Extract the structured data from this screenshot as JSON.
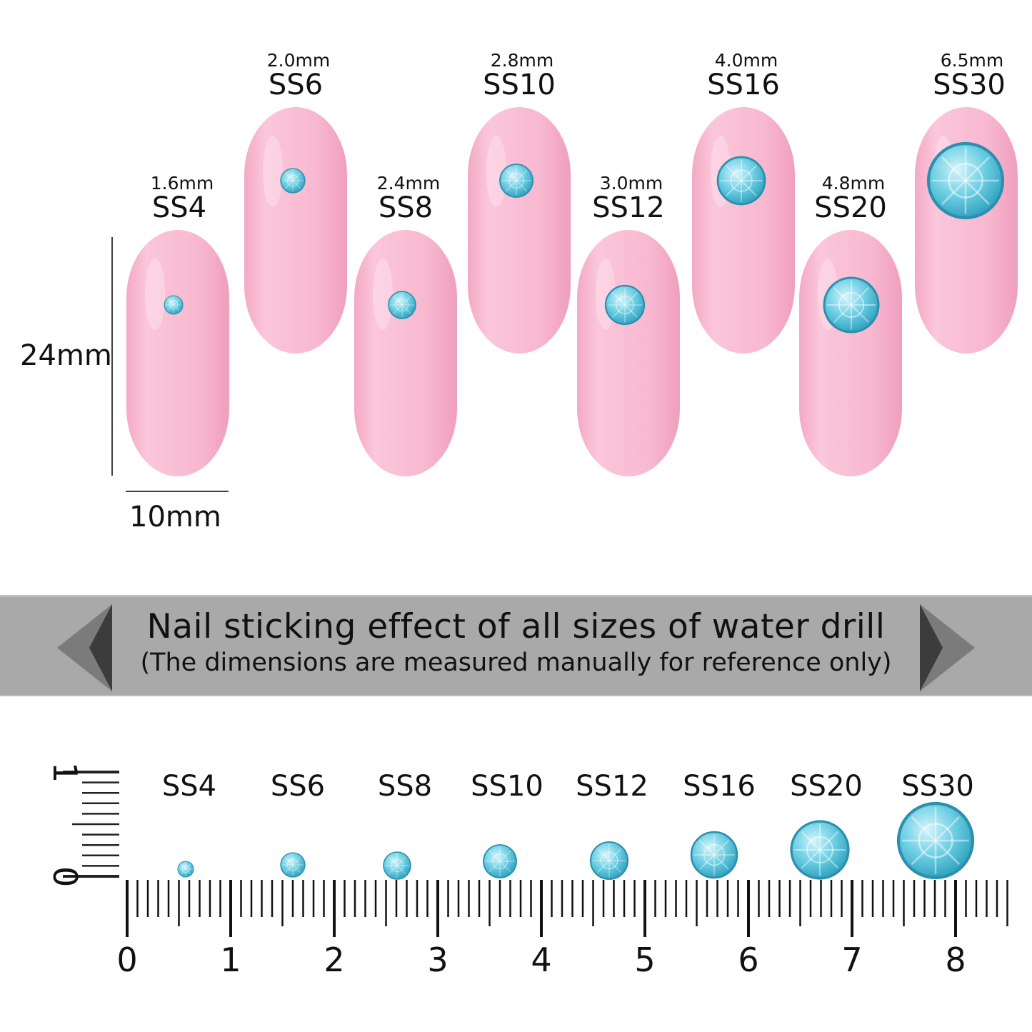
{
  "nails": [
    {
      "size": "SS4",
      "mm": "1.6mm"
    },
    {
      "size": "SS6",
      "mm": "2.0mm"
    },
    {
      "size": "SS8",
      "mm": "2.4mm"
    },
    {
      "size": "SS10",
      "mm": "2.8mm"
    },
    {
      "size": "SS12",
      "mm": "3.0mm"
    },
    {
      "size": "SS16",
      "mm": "4.0mm"
    },
    {
      "size": "SS20",
      "mm": "4.8mm"
    },
    {
      "size": "SS30",
      "mm": "6.5mm"
    }
  ],
  "dimensions": {
    "height": "24mm",
    "width": "10mm"
  },
  "banner": {
    "title": "Nail sticking effect of all sizes of water drill",
    "subtitle": "(The dimensions are measured manually for reference only)"
  },
  "ruler": {
    "labels": [
      "SS4",
      "SS6",
      "SS8",
      "SS10",
      "SS12",
      "SS16",
      "SS20",
      "SS30"
    ],
    "h_ticks": [
      "0",
      "1",
      "2",
      "3",
      "4",
      "5",
      "6",
      "7",
      "8"
    ],
    "v_ticks": [
      "0",
      "1"
    ]
  },
  "colors": {
    "nail": "#f7b6cf",
    "gem": "#5fc7dc",
    "banner": "#a9a9a9"
  }
}
